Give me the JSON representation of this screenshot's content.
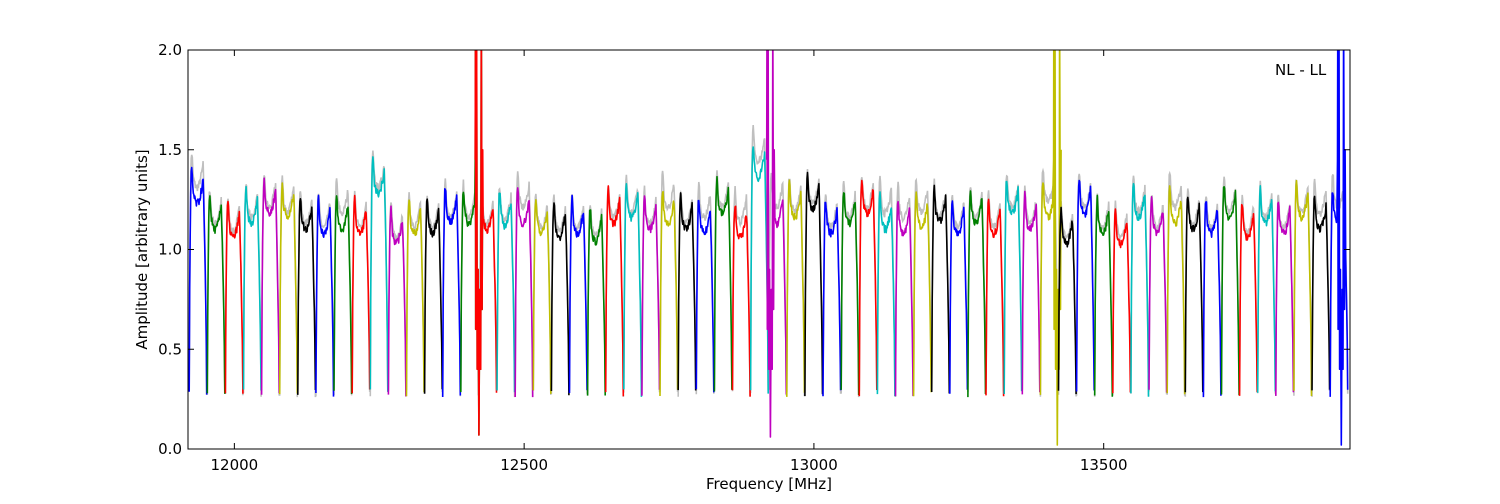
{
  "chart_data": {
    "type": "line",
    "title": "",
    "xlabel": "Frequency [MHz]",
    "ylabel": "Amplitude [arbitrary units]",
    "annotation": "NL - LL",
    "xlim": [
      11920,
      13925
    ],
    "ylim": [
      0.0,
      2.0
    ],
    "grid": false,
    "legend": "none",
    "x_ticks": [
      {
        "value": 12000,
        "label": "12000"
      },
      {
        "value": 12500,
        "label": "12500"
      },
      {
        "value": 13000,
        "label": "13000"
      },
      {
        "value": 13500,
        "label": "13500"
      }
    ],
    "y_ticks": [
      {
        "value": 0.0,
        "label": "0.0"
      },
      {
        "value": 0.5,
        "label": "0.5"
      },
      {
        "value": 1.0,
        "label": "1.0"
      },
      {
        "value": 1.5,
        "label": "1.5"
      },
      {
        "value": 2.0,
        "label": "2.0"
      }
    ],
    "reference_color": "#bfbfbf",
    "color_cycle": [
      "#0000ff",
      "#008000",
      "#ff0000",
      "#00bfbf",
      "#bf00bf",
      "#bfbf00",
      "#000000"
    ],
    "channel_width_mhz": 31.25,
    "n_channels": 64,
    "first_channel_start_mhz": 11922,
    "channel_levels": [
      1.35,
      1.22,
      1.18,
      1.25,
      1.3,
      1.28,
      1.22,
      1.2,
      1.22,
      1.2,
      1.4,
      1.15,
      1.2,
      1.2,
      1.26,
      1.25,
      1.22,
      1.24,
      1.25,
      1.2,
      1.18,
      1.2,
      1.16,
      1.25,
      1.28,
      1.22,
      1.25,
      1.22,
      1.2,
      1.3,
      1.18,
      1.48,
      1.25,
      1.28,
      1.32,
      1.2,
      1.25,
      1.3,
      1.22,
      1.2,
      1.23,
      1.26,
      1.2,
      1.25,
      1.2,
      1.3,
      1.22,
      1.28,
      1.15,
      1.3,
      1.2,
      1.15,
      1.28,
      1.2,
      1.25,
      1.22,
      1.2,
      1.28,
      1.18,
      1.25,
      1.2,
      1.28,
      1.22,
      1.25
    ],
    "dip_minimum": 0.28,
    "strong_features": [
      {
        "x": 12422,
        "min": 0.07,
        "max": 2.0
      },
      {
        "x": 12925,
        "min": 0.06,
        "max": 2.0
      },
      {
        "x": 13420,
        "min": 0.02,
        "max": 2.0
      },
      {
        "x": 13910,
        "min": 0.02,
        "max": 2.0
      }
    ]
  }
}
